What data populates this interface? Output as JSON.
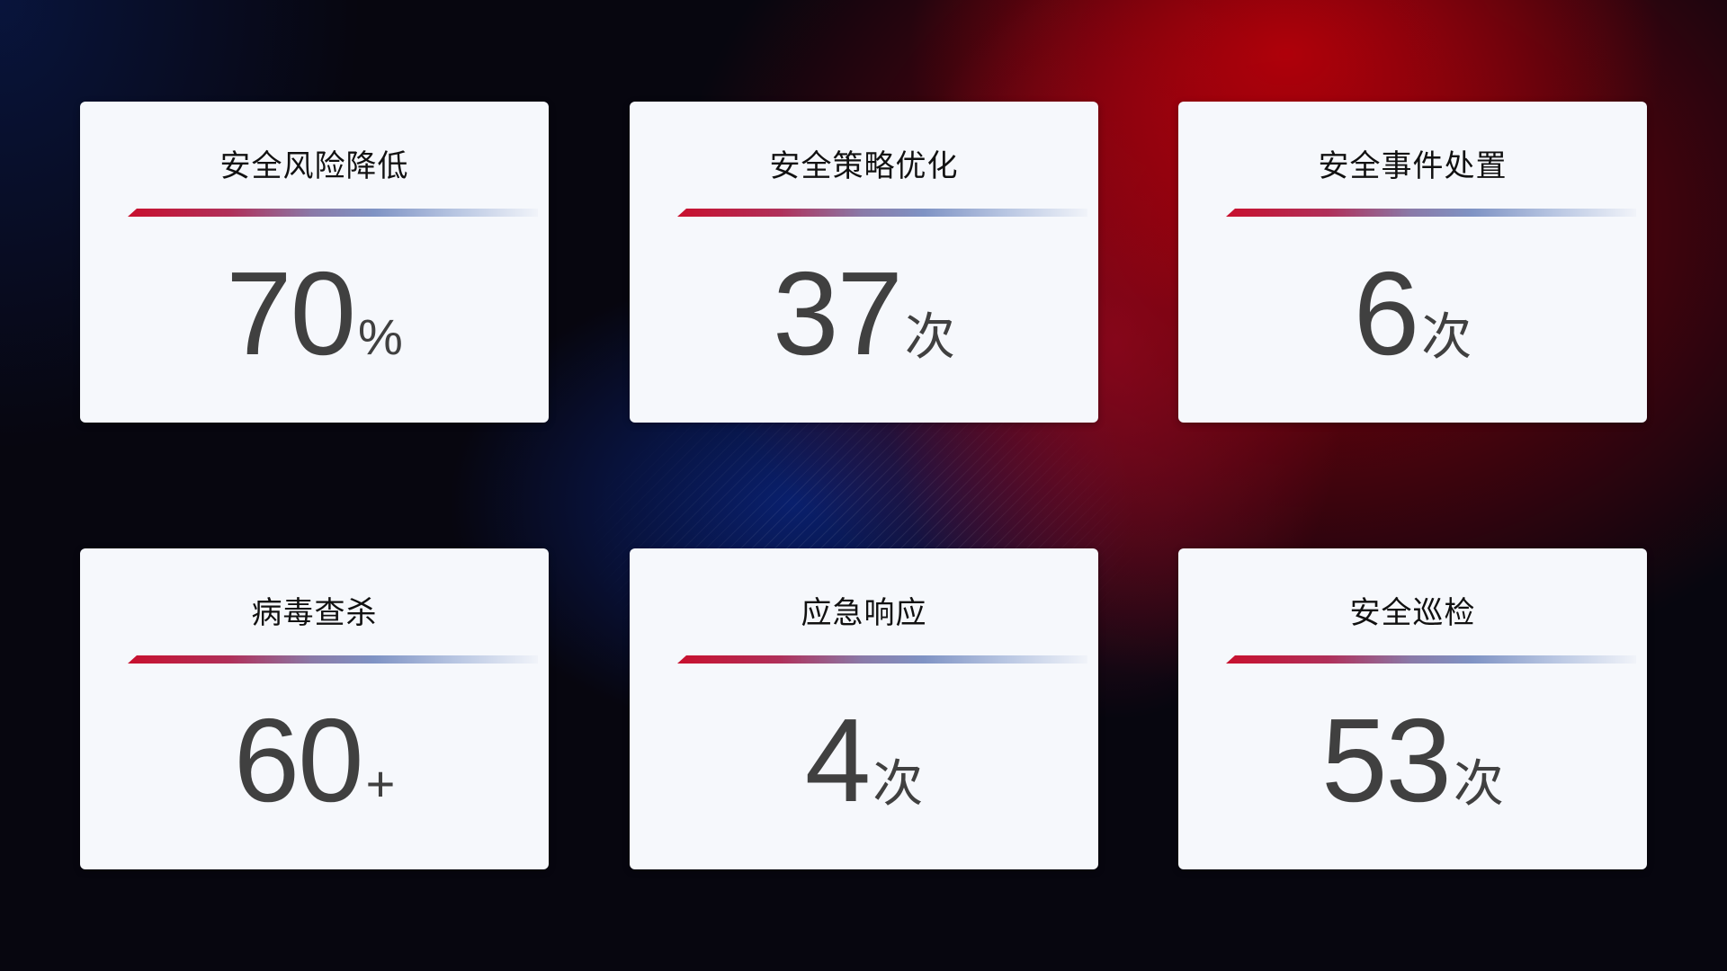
{
  "cards": [
    {
      "title": "安全风险降低",
      "value": "70",
      "unit": "%"
    },
    {
      "title": "安全策略优化",
      "value": "37",
      "unit": "次"
    },
    {
      "title": "安全事件处置",
      "value": "6",
      "unit": "次"
    },
    {
      "title": "病毒查杀",
      "value": "60",
      "unit": "+"
    },
    {
      "title": "应急响应",
      "value": "4",
      "unit": "次"
    },
    {
      "title": "安全巡检",
      "value": "53",
      "unit": "次"
    }
  ],
  "colors": {
    "accent_red": "#c8102e",
    "accent_blue": "#7f93c4",
    "card_bg": "#f6f8fc",
    "value_text": "#404040"
  }
}
